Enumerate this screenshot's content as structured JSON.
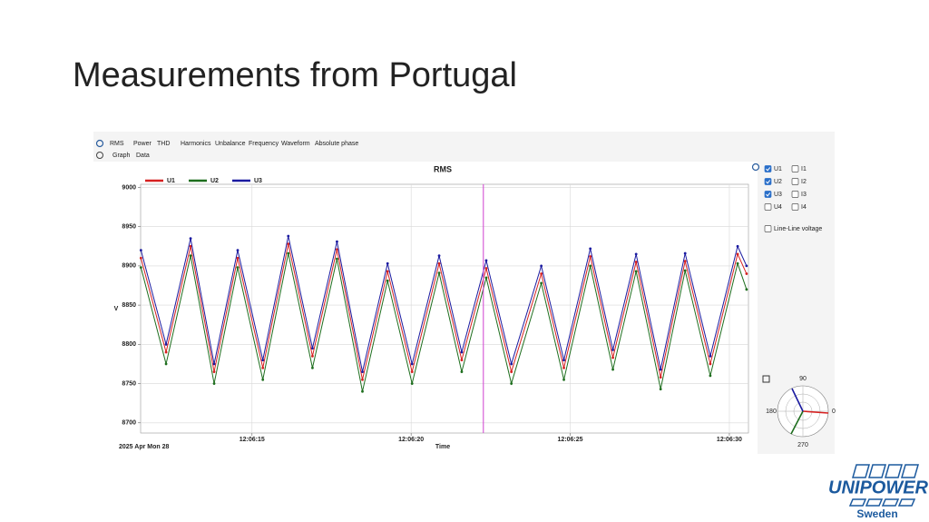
{
  "slide_title": "Measurements from Portugal",
  "tabs": [
    "RMS",
    "Power",
    "THD",
    "Harmonics",
    "Unbalance",
    "Frequency",
    "Waveform",
    "Absolute phase"
  ],
  "subtabs": [
    "Graph",
    "Data"
  ],
  "channels": [
    {
      "label": "U1",
      "checked": true
    },
    {
      "label": "I1",
      "checked": false
    },
    {
      "label": "U2",
      "checked": true
    },
    {
      "label": "I2",
      "checked": false
    },
    {
      "label": "U3",
      "checked": true
    },
    {
      "label": "I3",
      "checked": false
    },
    {
      "label": "U4",
      "checked": false
    },
    {
      "label": "I4",
      "checked": false
    }
  ],
  "line_line": {
    "label": "Line-Line voltage",
    "checked": false
  },
  "polar_labels": [
    "90",
    "180",
    "0",
    "270"
  ],
  "logo": {
    "name": "UNIPOWER",
    "country": "Sweden"
  },
  "chart_data": {
    "type": "line",
    "title": "RMS",
    "x_label": "Time",
    "y_label": "V",
    "date_label": "2025 Apr Mon 28",
    "x": [
      11.51,
      12.3,
      13.07,
      13.81,
      14.55,
      15.34,
      16.14,
      16.9,
      17.67,
      18.47,
      19.26,
      20.03,
      20.88,
      21.59,
      22.36,
      23.15,
      24.09,
      24.8,
      25.63,
      26.34,
      27.07,
      27.84,
      28.61,
      29.4,
      30.26,
      30.54
    ],
    "series": [
      {
        "name": "U1",
        "color": "#d62020",
        "values": [
          8910,
          8790,
          8925,
          8765,
          8910,
          8770,
          8928,
          8785,
          8921,
          8755,
          8893,
          8765,
          8903,
          8780,
          8897,
          8765,
          8890,
          8770,
          8912,
          8783,
          8905,
          8758,
          8906,
          8775,
          8915,
          8890
        ]
      },
      {
        "name": "U2",
        "color": "#1e6e1e",
        "values": [
          8898,
          8775,
          8913,
          8750,
          8898,
          8755,
          8916,
          8770,
          8909,
          8740,
          8881,
          8750,
          8891,
          8765,
          8885,
          8750,
          8878,
          8755,
          8900,
          8768,
          8893,
          8743,
          8894,
          8760,
          8903,
          8870
        ]
      },
      {
        "name": "U3",
        "color": "#1a1aa0",
        "values": [
          8920,
          8800,
          8935,
          8775,
          8920,
          8780,
          8938,
          8795,
          8931,
          8765,
          8903,
          8775,
          8913,
          8790,
          8907,
          8775,
          8900,
          8780,
          8922,
          8793,
          8915,
          8768,
          8916,
          8785,
          8925,
          8900
        ]
      }
    ],
    "xlim": [
      11.5,
      30.6
    ],
    "xticks": [
      {
        "value": 15,
        "label": "12:06:15"
      },
      {
        "value": 20,
        "label": "12:06:20"
      },
      {
        "value": 25,
        "label": "12:06:25"
      },
      {
        "value": 30,
        "label": "12:06:30"
      }
    ],
    "ylim": [
      8687,
      9004
    ],
    "yticks": [
      8700,
      8750,
      8800,
      8850,
      8900,
      8950,
      9000
    ],
    "cursor_x": 22.27,
    "grid": true
  }
}
